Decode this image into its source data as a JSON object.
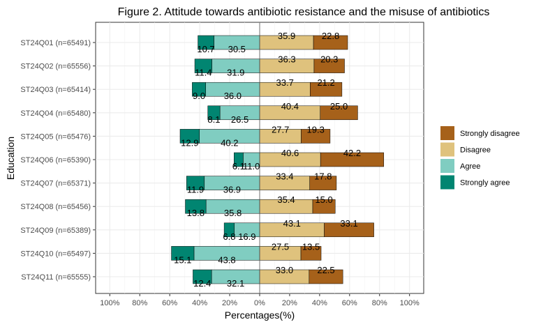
{
  "chart_data": {
    "type": "bar",
    "orientation": "horizontal",
    "stacked": "diverging",
    "title": "Figure 2. Attitude towards antibiotic resistance and the misuse of antibiotics",
    "xlabel": "Percentages(%)",
    "ylabel": "Education",
    "xlim": [
      -100,
      100
    ],
    "x_ticks": [
      -100,
      -80,
      -60,
      -40,
      -20,
      0,
      20,
      40,
      60,
      80,
      100
    ],
    "x_tick_labels": [
      "100%",
      "80%",
      "60%",
      "40%",
      "20%",
      "0%",
      "20%",
      "40%",
      "60%",
      "80%",
      "100%"
    ],
    "grid": true,
    "legend_position": "right",
    "categories": [
      "ST24Q01 (n=65491)",
      "ST24Q02 (n=65556)",
      "ST24Q03 (n=65414)",
      "ST24Q04 (n=65480)",
      "ST24Q05 (n=65476)",
      "ST24Q06 (n=65390)",
      "ST24Q07 (n=65371)",
      "ST24Q08 (n=65456)",
      "ST24Q09 (n=65389)",
      "ST24Q10 (n=65497)",
      "ST24Q11 (n=65555)"
    ],
    "series": [
      {
        "name": "Strongly agree",
        "side": "left",
        "color": "#018571",
        "values": [
          10.7,
          11.4,
          9.0,
          8.1,
          12.9,
          6.1,
          11.9,
          13.8,
          6.8,
          15.1,
          12.4
        ]
      },
      {
        "name": "Agree",
        "side": "left",
        "color": "#80CDC1",
        "values": [
          30.5,
          31.9,
          36.0,
          26.5,
          40.2,
          11.0,
          36.9,
          35.8,
          16.9,
          43.8,
          32.1
        ]
      },
      {
        "name": "Disagree",
        "side": "right",
        "color": "#DFC27D",
        "values": [
          35.9,
          36.3,
          33.7,
          40.4,
          27.7,
          40.6,
          33.4,
          35.4,
          43.1,
          27.5,
          33.0
        ]
      },
      {
        "name": "Strongly disagree",
        "side": "right",
        "color": "#A6611A",
        "values": [
          22.8,
          20.3,
          21.2,
          25.0,
          19.3,
          42.2,
          17.8,
          15.0,
          33.1,
          13.5,
          22.5
        ]
      }
    ],
    "legend_order": [
      "Strongly disagree",
      "Disagree",
      "Agree",
      "Strongly agree"
    ]
  }
}
